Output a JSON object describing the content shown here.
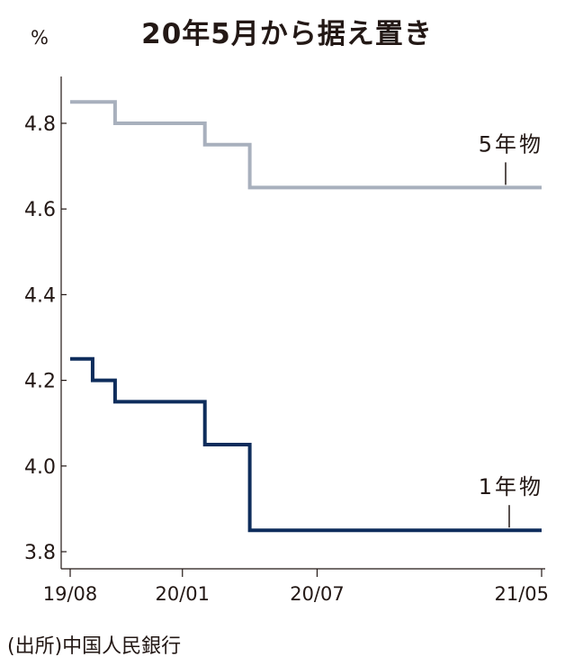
{
  "title": "20年5月から据え置き",
  "unit_label": "%",
  "source": "(出所)中国人民銀行",
  "colors": {
    "five_year": "#a8b0bd",
    "one_year": "#0e2d5c",
    "axis": "#231815"
  },
  "chart_data": {
    "type": "line",
    "step": true,
    "ylim": [
      3.8,
      4.9
    ],
    "yticks": [
      3.8,
      4.0,
      4.2,
      4.4,
      4.6,
      4.8
    ],
    "ytick_labels": [
      "3.8",
      "4.0",
      "4.2",
      "4.4",
      "4.6",
      "4.8"
    ],
    "x_range": [
      "2019-08",
      "2021-05"
    ],
    "xticks": [
      "2019-08",
      "2020-01",
      "2020-07",
      "2021-05"
    ],
    "xtick_labels": [
      "19/08",
      "20/01",
      "20/07",
      "21/05"
    ],
    "grid": false,
    "series": [
      {
        "name": "5年物",
        "x": [
          "2019-08",
          "2019-10",
          "2020-02",
          "2020-04",
          "2021-05"
        ],
        "values": [
          4.85,
          4.8,
          4.75,
          4.65,
          4.65
        ]
      },
      {
        "name": "1年物",
        "x": [
          "2019-08",
          "2019-09",
          "2019-10",
          "2020-02",
          "2020-04",
          "2021-05"
        ],
        "values": [
          4.25,
          4.2,
          4.15,
          4.05,
          3.85,
          3.85
        ]
      }
    ]
  }
}
